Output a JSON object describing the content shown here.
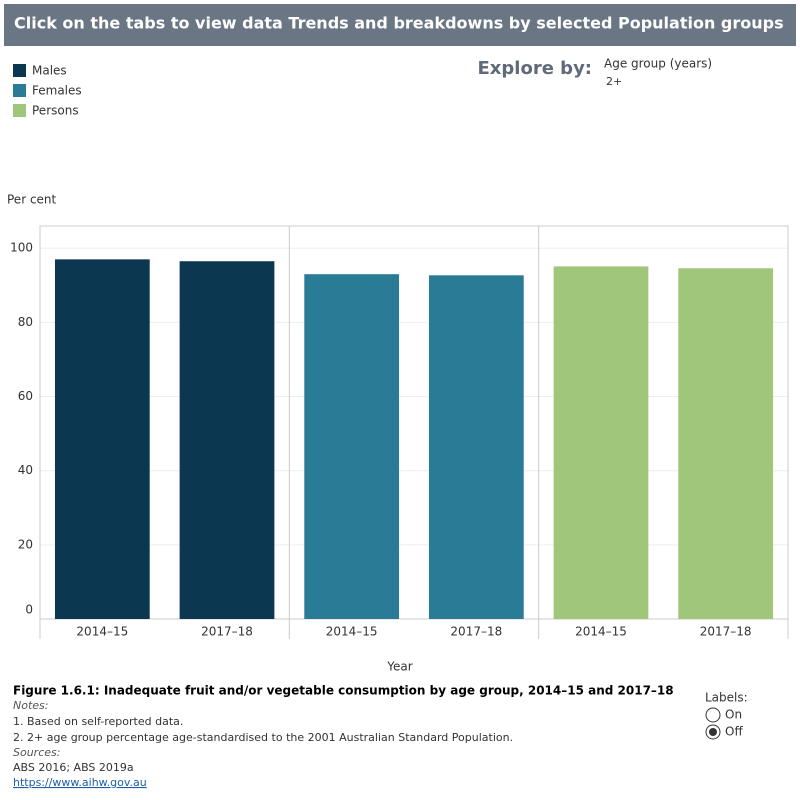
{
  "header": {
    "title": "Click on the tabs to view data Trends and breakdowns by selected Population groups"
  },
  "filter": {
    "label": "Explore by:",
    "name": "Age group (years)",
    "value": "2+"
  },
  "chart_data": {
    "type": "bar",
    "ylabel": "Per cent",
    "xlabel": "Year",
    "categories": [
      "2014–15",
      "2017–18"
    ],
    "series": [
      {
        "name": "Males",
        "color": "#0b3750",
        "values": [
          97.0,
          96.5
        ]
      },
      {
        "name": "Females",
        "color": "#2a7b96",
        "values": [
          93.0,
          92.7
        ]
      },
      {
        "name": "Persons",
        "color": "#a0c67a",
        "values": [
          95.1,
          94.6
        ]
      }
    ],
    "ylim": [
      0,
      106
    ],
    "yticks": [
      0,
      20,
      40,
      60,
      80,
      100
    ],
    "grid": true
  },
  "footer": {
    "caption": "Figure 1.6.1: Inadequate fruit and/or vegetable consumption by age group, 2014–15 and 2017–18",
    "notes_heading": "Notes:",
    "notes": [
      "1. Based on self-reported data.",
      "2. 2+ age group percentage age-standardised to the 2001 Australian Standard Population."
    ],
    "sources_heading": "Sources:",
    "sources": "ABS 2016; ABS 2019a",
    "link": "https://www.aihw.gov.au"
  },
  "labels_toggle": {
    "title": "Labels:",
    "options": [
      "On",
      "Off"
    ],
    "selected": 1
  }
}
